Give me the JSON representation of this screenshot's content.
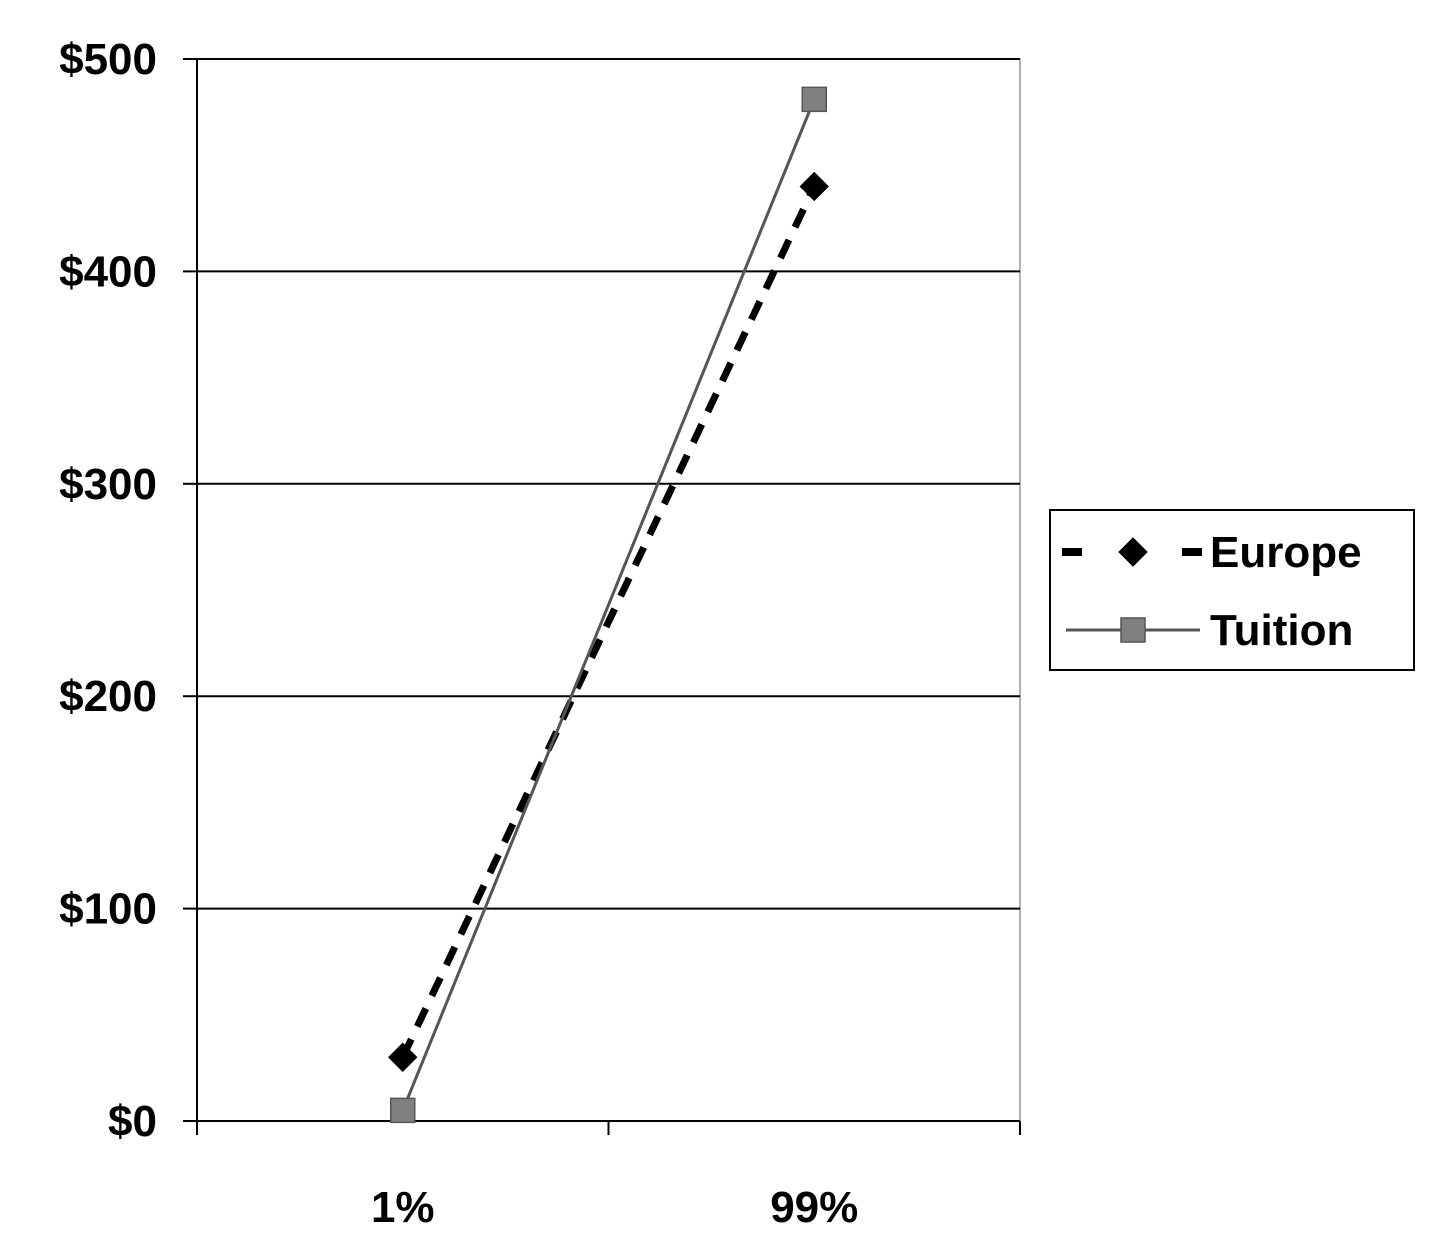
{
  "chart_data": {
    "type": "line",
    "categories": [
      "1%",
      "99%"
    ],
    "series": [
      {
        "name": "Europe",
        "values": [
          30,
          440
        ],
        "color": "#000000",
        "line": "dashed",
        "marker": "diamond"
      },
      {
        "name": "Tuition",
        "values": [
          5,
          481
        ],
        "color": "#555555",
        "line": "solid",
        "marker": "square",
        "marker_color": "#808080"
      }
    ],
    "ylim": [
      0,
      500
    ],
    "yticks": [
      0,
      100,
      200,
      300,
      400,
      500
    ],
    "ytick_labels": [
      "$0",
      "$100",
      "$200",
      "$300",
      "$400",
      "$500"
    ],
    "grid": true,
    "legend_position": "right"
  }
}
